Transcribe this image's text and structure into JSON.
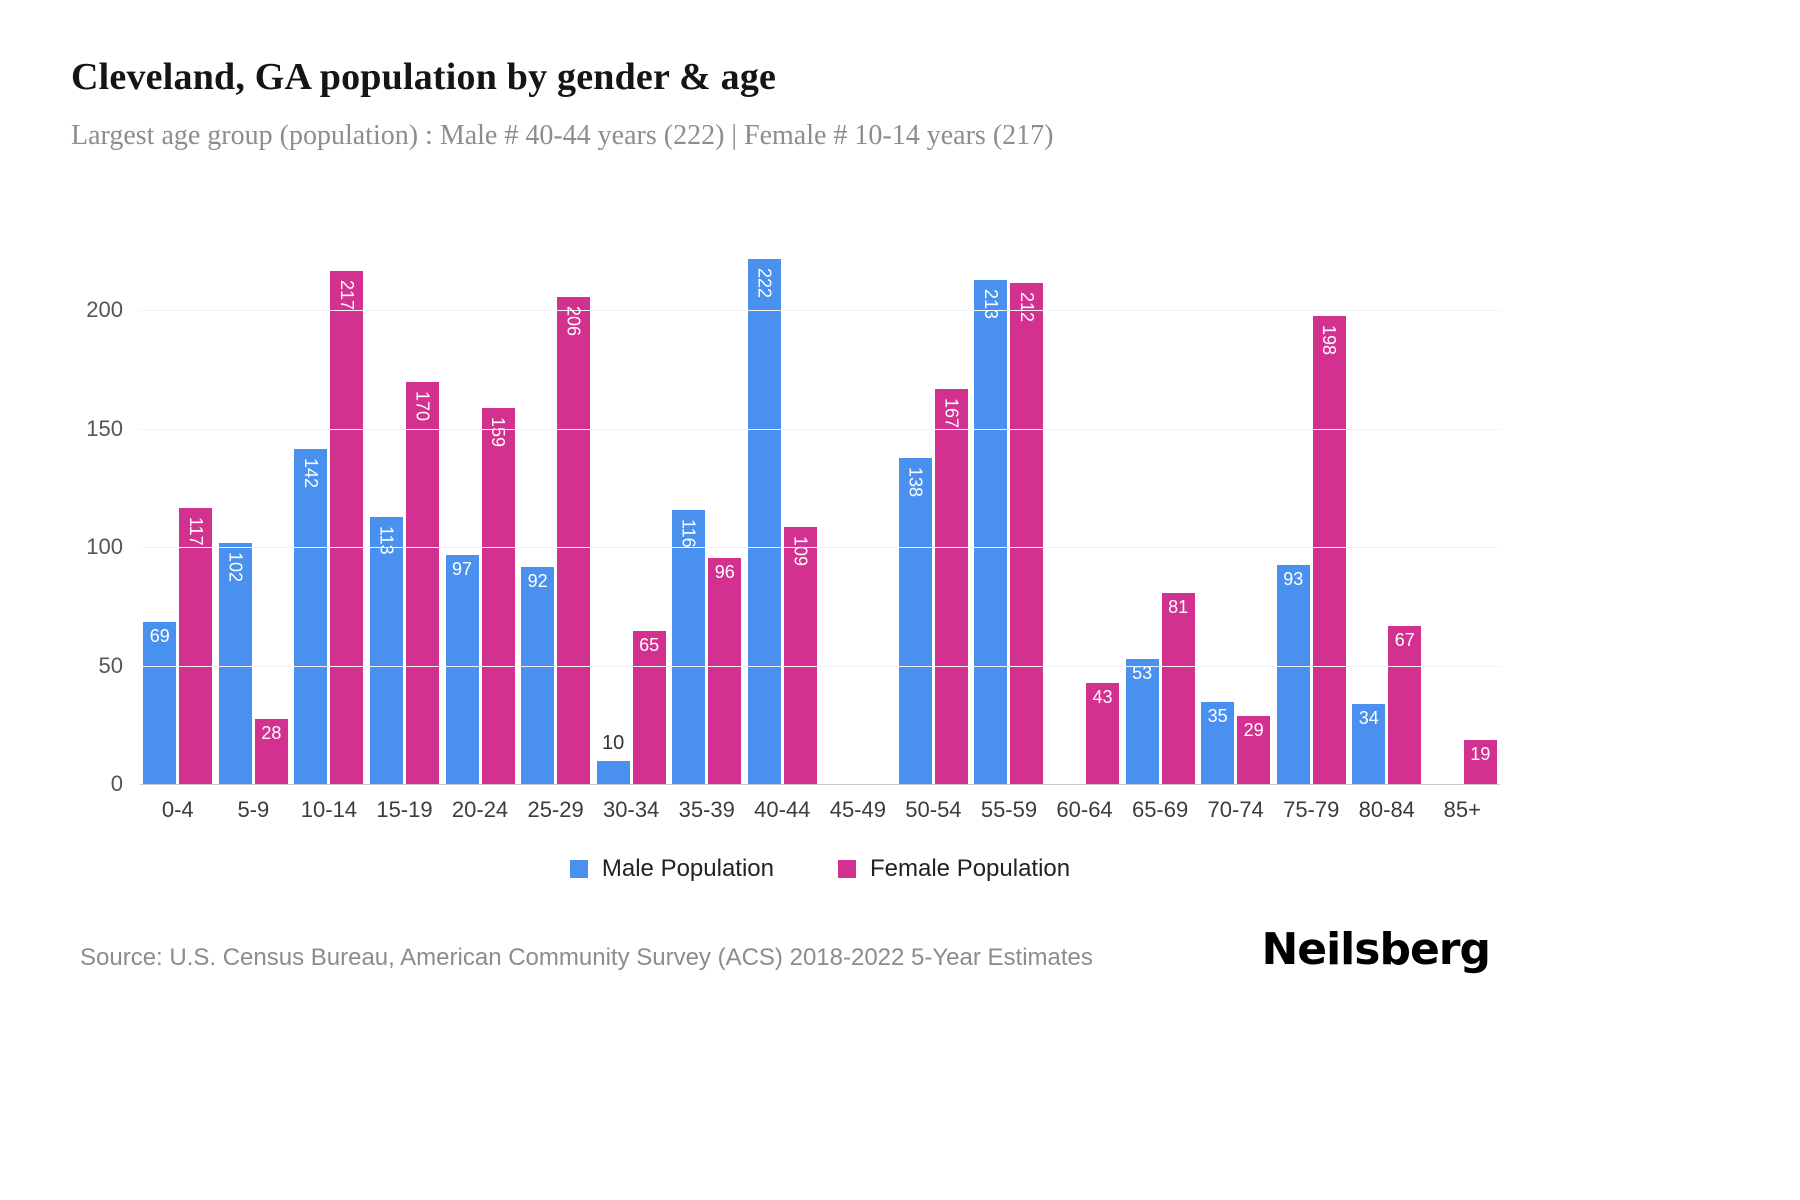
{
  "header": {
    "title": "Cleveland, GA population by gender & age",
    "subtitle": "Largest age group (population) : Male # 40-44 years (222) | Female # 10-14 years (217)"
  },
  "chart_data": {
    "type": "bar",
    "title": "Cleveland, GA population by gender & age",
    "categories": [
      "0-4",
      "5-9",
      "10-14",
      "15-19",
      "20-24",
      "25-29",
      "30-34",
      "35-39",
      "40-44",
      "45-49",
      "50-54",
      "55-59",
      "60-64",
      "65-69",
      "70-74",
      "75-79",
      "80-84",
      "85+"
    ],
    "series": [
      {
        "name": "Male Population",
        "color": "#4a90ee",
        "values": [
          69,
          102,
          142,
          113,
          97,
          92,
          10,
          116,
          222,
          0,
          138,
          213,
          0,
          53,
          35,
          93,
          34,
          0
        ]
      },
      {
        "name": "Female Population",
        "color": "#d23190",
        "values": [
          117,
          28,
          217,
          170,
          159,
          206,
          65,
          96,
          109,
          0,
          167,
          212,
          43,
          81,
          29,
          198,
          67,
          19
        ]
      }
    ],
    "xlabel": "",
    "ylabel": "",
    "ylim": [
      0,
      230
    ],
    "yticks": [
      0,
      50,
      100,
      150,
      200
    ],
    "grid": "horizontal",
    "legend_position": "bottom"
  },
  "legend": {
    "male": "Male Population",
    "female": "Female Population"
  },
  "footer": {
    "source": "Source: U.S. Census Bureau, American Community Survey (ACS) 2018-2022 5-Year Estimates",
    "brand": "Neilsberg"
  }
}
